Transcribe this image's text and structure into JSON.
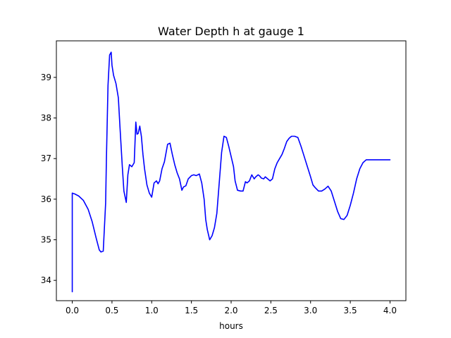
{
  "chart_data": {
    "type": "line",
    "title": "Water Depth h at gauge 1",
    "xlabel": "hours",
    "ylabel": "",
    "xlim": [
      -0.2,
      4.2
    ],
    "ylim": [
      33.5,
      39.9
    ],
    "xticks": [
      0.0,
      0.5,
      1.0,
      1.5,
      2.0,
      2.5,
      3.0,
      3.5,
      4.0
    ],
    "xtick_labels": [
      "0.0",
      "0.5",
      "1.0",
      "1.5",
      "2.0",
      "2.5",
      "3.0",
      "3.5",
      "4.0"
    ],
    "yticks": [
      34,
      35,
      36,
      37,
      38,
      39
    ],
    "ytick_labels": [
      "34",
      "35",
      "36",
      "37",
      "38",
      "39"
    ],
    "grid": false,
    "series": [
      {
        "color": "#0000ff",
        "x": [
          0.0,
          0.0,
          0.03,
          0.08,
          0.14,
          0.2,
          0.25,
          0.3,
          0.34,
          0.36,
          0.39,
          0.42,
          0.43,
          0.45,
          0.47,
          0.49,
          0.5,
          0.52,
          0.55,
          0.58,
          0.6,
          0.63,
          0.65,
          0.68,
          0.7,
          0.72,
          0.75,
          0.78,
          0.8,
          0.815,
          0.83,
          0.85,
          0.87,
          0.89,
          0.91,
          0.94,
          0.97,
          1.0,
          1.03,
          1.06,
          1.08,
          1.1,
          1.13,
          1.16,
          1.2,
          1.23,
          1.26,
          1.29,
          1.32,
          1.35,
          1.38,
          1.4,
          1.43,
          1.46,
          1.5,
          1.53,
          1.56,
          1.6,
          1.63,
          1.66,
          1.68,
          1.7,
          1.73,
          1.76,
          1.79,
          1.82,
          1.85,
          1.88,
          1.91,
          1.94,
          1.97,
          2.0,
          2.03,
          2.05,
          2.08,
          2.12,
          2.15,
          2.18,
          2.2,
          2.23,
          2.26,
          2.29,
          2.31,
          2.34,
          2.36,
          2.38,
          2.41,
          2.43,
          2.46,
          2.49,
          2.52,
          2.55,
          2.58,
          2.61,
          2.64,
          2.67,
          2.7,
          2.73,
          2.76,
          2.8,
          2.84,
          2.88,
          2.92,
          2.96,
          3.0,
          3.03,
          3.06,
          3.1,
          3.14,
          3.18,
          3.22,
          3.26,
          3.3,
          3.34,
          3.38,
          3.42,
          3.46,
          3.5,
          3.54,
          3.58,
          3.62,
          3.66,
          3.7,
          3.74,
          3.78,
          3.82,
          3.86,
          3.9,
          3.94,
          3.98,
          4.0
        ],
        "y": [
          33.72,
          36.15,
          36.13,
          36.08,
          35.97,
          35.75,
          35.45,
          35.05,
          34.75,
          34.7,
          34.72,
          35.9,
          37.0,
          38.8,
          39.55,
          39.62,
          39.3,
          39.05,
          38.85,
          38.5,
          37.8,
          36.8,
          36.2,
          35.92,
          36.6,
          36.85,
          36.8,
          36.9,
          37.9,
          37.6,
          37.62,
          37.8,
          37.55,
          37.1,
          36.75,
          36.35,
          36.15,
          36.05,
          36.4,
          36.45,
          36.38,
          36.45,
          36.75,
          36.92,
          37.35,
          37.38,
          37.1,
          36.85,
          36.65,
          36.5,
          36.22,
          36.3,
          36.33,
          36.5,
          36.58,
          36.6,
          36.58,
          36.62,
          36.4,
          36.0,
          35.5,
          35.25,
          35.0,
          35.1,
          35.3,
          35.65,
          36.4,
          37.15,
          37.55,
          37.52,
          37.3,
          37.05,
          36.8,
          36.45,
          36.22,
          36.2,
          36.2,
          36.43,
          36.4,
          36.45,
          36.6,
          36.5,
          36.55,
          36.6,
          36.57,
          36.52,
          36.5,
          36.55,
          36.5,
          36.45,
          36.5,
          36.75,
          36.9,
          37.0,
          37.1,
          37.25,
          37.42,
          37.5,
          37.55,
          37.55,
          37.52,
          37.3,
          37.05,
          36.8,
          36.55,
          36.35,
          36.28,
          36.2,
          36.2,
          36.25,
          36.32,
          36.2,
          35.95,
          35.7,
          35.52,
          35.5,
          35.6,
          35.85,
          36.15,
          36.5,
          36.75,
          36.9,
          36.97,
          36.97,
          36.97,
          36.97,
          36.97,
          36.97,
          36.97,
          36.97,
          36.97
        ]
      }
    ]
  }
}
